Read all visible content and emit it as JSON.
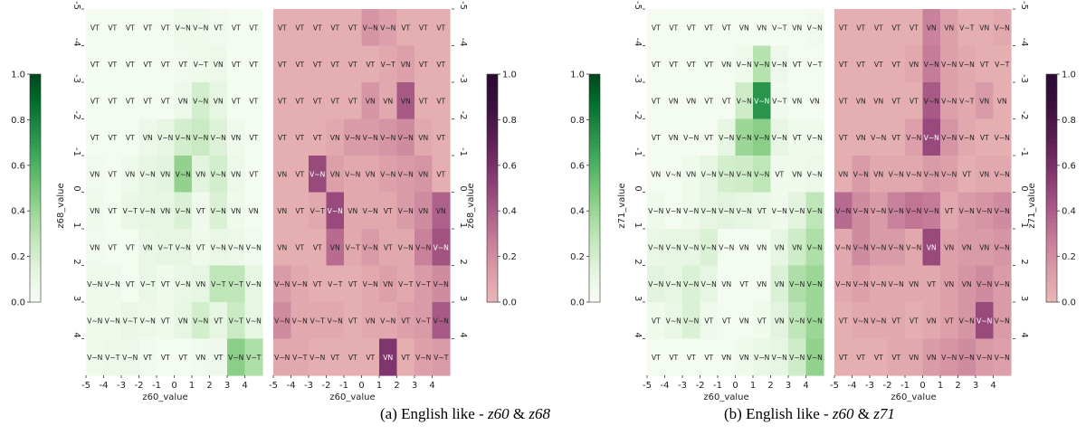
{
  "colors": {
    "green_scale": [
      "#f7fcf5",
      "#e5f5e0",
      "#c7e9c0",
      "#a1d99b",
      "#74c476",
      "#41ab5d",
      "#238b45",
      "#006d2c",
      "#00441b"
    ],
    "pink_scale": [
      "#e8b4b4",
      "#d99aa7",
      "#c27897",
      "#a35483",
      "#7e346c",
      "#5a1f55",
      "#3a1040",
      "#2a0b33"
    ],
    "text_dark": "#222222",
    "text_light": "#ffffff"
  },
  "colorbar_ticks": [
    "0.0",
    "0.2",
    "0.4",
    "0.6",
    "0.8",
    "1.0"
  ],
  "axis_ticks": [
    "-5",
    "-4",
    "-3",
    "-2",
    "-1",
    "0",
    "1",
    "2",
    "3",
    "4"
  ],
  "chart_data": [
    {
      "type": "heatmap",
      "caption": "(a) English like - z60 & z68",
      "caption_parts": {
        "prefix": "(a) English like - ",
        "var1": "z60",
        "amp": " & ",
        "var2": "z68"
      },
      "xlabel": "z60_value",
      "ylabel": "z68_value",
      "vmin": 0,
      "vmax": 1,
      "x_ticks": [
        "-5",
        "-4",
        "-3",
        "-2",
        "-1",
        "0",
        "1",
        "2",
        "3",
        "4"
      ],
      "y_ticks": [
        "-5",
        "-4",
        "-3",
        "-2",
        "-1",
        "0",
        "1",
        "2",
        "3",
        "4"
      ],
      "left_panel": {
        "colormap": "Greens",
        "labels": [
          [
            "VT",
            "VT",
            "VT",
            "VT",
            "VT",
            "V~N",
            "V~N",
            "VT",
            "VT",
            "VT"
          ],
          [
            "VT",
            "VT",
            "VT",
            "VT",
            "VT",
            "VT",
            "V~T",
            "VN",
            "VT",
            "VT"
          ],
          [
            "VT",
            "VT",
            "VT",
            "VT",
            "VT",
            "VN",
            "V~N",
            "VN",
            "VT",
            "VT"
          ],
          [
            "VT",
            "VT",
            "VT",
            "VN",
            "V~N",
            "V~N",
            "V~N",
            "V~N",
            "VN",
            "VT"
          ],
          [
            "VN",
            "VT",
            "VN",
            "V~N",
            "VN",
            "V~N",
            "VN",
            "V~N",
            "VN",
            "VT"
          ],
          [
            "VN",
            "VT",
            "V~T",
            "V~N",
            "VN",
            "V~N",
            "VT",
            "V~N",
            "VN",
            "VN"
          ],
          [
            "VN",
            "VT",
            "VT",
            "VN",
            "V~T",
            "V~N",
            "VT",
            "V~N",
            "V~N",
            "V~N"
          ],
          [
            "V~N",
            "V~N",
            "VT",
            "V~T",
            "VT",
            "V~N",
            "VN",
            "V~T",
            "V~T",
            "V~N"
          ],
          [
            "V~N",
            "V~N",
            "V~T",
            "V~N",
            "VT",
            "VN",
            "V~N",
            "VT",
            "V~T",
            "V~N"
          ],
          [
            "V~N",
            "V~T",
            "V~N",
            "VT",
            "VT",
            "VT",
            "VN",
            "VT",
            "V~N",
            "V~T"
          ]
        ],
        "values": [
          [
            0.02,
            0.02,
            0.02,
            0.02,
            0.02,
            0.05,
            0.05,
            0.03,
            0.02,
            0.02
          ],
          [
            0.02,
            0.02,
            0.02,
            0.02,
            0.02,
            0.03,
            0.05,
            0.06,
            0.02,
            0.02
          ],
          [
            0.02,
            0.02,
            0.02,
            0.02,
            0.02,
            0.06,
            0.18,
            0.1,
            0.02,
            0.02
          ],
          [
            0.02,
            0.02,
            0.02,
            0.06,
            0.1,
            0.18,
            0.22,
            0.14,
            0.05,
            0.02
          ],
          [
            0.03,
            0.02,
            0.05,
            0.1,
            0.12,
            0.38,
            0.12,
            0.18,
            0.06,
            0.02
          ],
          [
            0.05,
            0.02,
            0.08,
            0.1,
            0.1,
            0.15,
            0.05,
            0.15,
            0.05,
            0.02
          ],
          [
            0.03,
            0.02,
            0.02,
            0.08,
            0.1,
            0.1,
            0.05,
            0.08,
            0.06,
            0.04
          ],
          [
            0.05,
            0.05,
            0.02,
            0.08,
            0.05,
            0.08,
            0.1,
            0.25,
            0.25,
            0.1
          ],
          [
            0.05,
            0.05,
            0.08,
            0.06,
            0.05,
            0.1,
            0.18,
            0.1,
            0.22,
            0.1
          ],
          [
            0.05,
            0.06,
            0.06,
            0.04,
            0.02,
            0.02,
            0.04,
            0.06,
            0.4,
            0.3
          ]
        ]
      },
      "right_panel": {
        "colormap": "pink_r",
        "labels": [
          [
            "VT",
            "VT",
            "VT",
            "VT",
            "VT",
            "V~N",
            "V~N",
            "VT",
            "VT",
            "VT"
          ],
          [
            "VT",
            "VT",
            "VT",
            "VT",
            "VT",
            "VT",
            "V~T",
            "VN",
            "VT",
            "VT"
          ],
          [
            "VT",
            "VT",
            "VT",
            "VT",
            "VT",
            "VN",
            "VN",
            "VN",
            "VT",
            "VT"
          ],
          [
            "VT",
            "VT",
            "VT",
            "VN",
            "V~N",
            "V~N",
            "V~N",
            "V~N",
            "VN",
            "VT"
          ],
          [
            "VN",
            "VT",
            "V~N",
            "VN",
            "V~N",
            "VN",
            "V~N",
            "V~N",
            "VN",
            "VT"
          ],
          [
            "VN",
            "VT",
            "V~T",
            "V~N",
            "VN",
            "V~N",
            "VT",
            "V~N",
            "VN",
            "VN"
          ],
          [
            "VN",
            "VT",
            "VT",
            "VN",
            "V~T",
            "V~N",
            "VT",
            "V~N",
            "V~N",
            "V~N"
          ],
          [
            "V~N",
            "V~N",
            "VT",
            "V~T",
            "VT",
            "V~N",
            "VN",
            "V~T",
            "V~T",
            "V~N"
          ],
          [
            "V~N",
            "V~N",
            "V~T",
            "V~N",
            "VT",
            "VN",
            "V~N",
            "VT",
            "V~T",
            "V~N"
          ],
          [
            "V~N",
            "V~T",
            "V~N",
            "VT",
            "VT",
            "VT",
            "VN",
            "VT",
            "V~N",
            "V~T"
          ]
        ],
        "values": [
          [
            0.02,
            0.02,
            0.02,
            0.02,
            0.02,
            0.12,
            0.08,
            0.02,
            0.02,
            0.02
          ],
          [
            0.02,
            0.02,
            0.02,
            0.02,
            0.02,
            0.02,
            0.05,
            0.08,
            0.02,
            0.02
          ],
          [
            0.02,
            0.02,
            0.02,
            0.02,
            0.02,
            0.12,
            0.05,
            0.3,
            0.02,
            0.02
          ],
          [
            0.02,
            0.02,
            0.02,
            0.05,
            0.1,
            0.1,
            0.12,
            0.15,
            0.05,
            0.02
          ],
          [
            0.02,
            0.02,
            0.35,
            0.08,
            0.05,
            0.05,
            0.08,
            0.1,
            0.12,
            0.02
          ],
          [
            0.02,
            0.02,
            0.05,
            0.35,
            0.05,
            0.05,
            0.05,
            0.1,
            0.15,
            0.28
          ],
          [
            0.02,
            0.02,
            0.02,
            0.25,
            0.05,
            0.1,
            0.05,
            0.05,
            0.18,
            0.32
          ],
          [
            0.1,
            0.05,
            0.02,
            0.02,
            0.02,
            0.05,
            0.08,
            0.05,
            0.1,
            0.15
          ],
          [
            0.15,
            0.05,
            0.05,
            0.05,
            0.02,
            0.05,
            0.05,
            0.08,
            0.1,
            0.3
          ],
          [
            0.05,
            0.05,
            0.02,
            0.02,
            0.02,
            0.02,
            0.42,
            0.02,
            0.08,
            0.1
          ]
        ]
      }
    },
    {
      "type": "heatmap",
      "caption": "(b) English like - z60 & z71",
      "caption_parts": {
        "prefix": "(b) English like - ",
        "var1": "z60",
        "amp": " & ",
        "var2": "z71"
      },
      "xlabel": "z60_value",
      "ylabel": "z71_value",
      "vmin": 0,
      "vmax": 1,
      "x_ticks": [
        "-5",
        "-4",
        "-3",
        "-2",
        "-1",
        "0",
        "1",
        "2",
        "3",
        "4"
      ],
      "y_ticks": [
        "-5",
        "-4",
        "-3",
        "-2",
        "-1",
        "0",
        "1",
        "2",
        "3",
        "4"
      ],
      "left_panel": {
        "colormap": "Greens",
        "labels": [
          [
            "VT",
            "VT",
            "VT",
            "VT",
            "VT",
            "VN",
            "VN",
            "V~T",
            "VN",
            "V~N"
          ],
          [
            "VT",
            "VT",
            "VT",
            "VT",
            "VN",
            "V~N",
            "V~N",
            "V~N",
            "VT",
            "V~T"
          ],
          [
            "VT",
            "VN",
            "VN",
            "VT",
            "VT",
            "V~N",
            "V~N",
            "V~T",
            "VN",
            "VN"
          ],
          [
            "VT",
            "VN",
            "V~N",
            "VT",
            "V~N",
            "V~N",
            "V~N",
            "V~N",
            "VT",
            "V~N"
          ],
          [
            "VN",
            "V~N",
            "VN",
            "V~N",
            "V~N",
            "V~N",
            "V~N",
            "VT",
            "VN",
            "V~N"
          ],
          [
            "V~N",
            "V~N",
            "V~N",
            "V~N",
            "V~N",
            "V~N",
            "VT",
            "V~N",
            "V~N",
            "V~N"
          ],
          [
            "V~N",
            "V~N",
            "V~N",
            "V~N",
            "V~N",
            "VN",
            "VN",
            "VN",
            "VN",
            "V~N"
          ],
          [
            "V~N",
            "V~N",
            "V~N",
            "V~N",
            "VN",
            "VT",
            "VN",
            "VN",
            "V~N",
            "V~N"
          ],
          [
            "VT",
            "V~N",
            "V~N",
            "VT",
            "VT",
            "VN",
            "VT",
            "VN",
            "V~N",
            "V~N"
          ],
          [
            "VT",
            "VT",
            "VT",
            "VT",
            "VN",
            "VN",
            "V~N",
            "V~N",
            "V~N",
            "V~N"
          ]
        ],
        "values": [
          [
            0.02,
            0.02,
            0.02,
            0.02,
            0.02,
            0.02,
            0.02,
            0.02,
            0.02,
            0.03
          ],
          [
            0.02,
            0.02,
            0.02,
            0.02,
            0.02,
            0.05,
            0.28,
            0.06,
            0.02,
            0.02
          ],
          [
            0.02,
            0.02,
            0.02,
            0.02,
            0.02,
            0.2,
            0.65,
            0.05,
            0.02,
            0.02
          ],
          [
            0.02,
            0.02,
            0.02,
            0.02,
            0.1,
            0.35,
            0.4,
            0.1,
            0.05,
            0.05
          ],
          [
            0.02,
            0.02,
            0.05,
            0.1,
            0.18,
            0.2,
            0.25,
            0.05,
            0.05,
            0.06
          ],
          [
            0.05,
            0.02,
            0.05,
            0.1,
            0.12,
            0.1,
            0.08,
            0.05,
            0.12,
            0.25
          ],
          [
            0.08,
            0.1,
            0.1,
            0.15,
            0.02,
            0.02,
            0.02,
            0.1,
            0.2,
            0.3
          ],
          [
            0.12,
            0.1,
            0.15,
            0.1,
            0.02,
            0.02,
            0.02,
            0.15,
            0.3,
            0.35
          ],
          [
            0.05,
            0.08,
            0.15,
            0.05,
            0.02,
            0.02,
            0.05,
            0.12,
            0.25,
            0.35
          ],
          [
            0.02,
            0.02,
            0.02,
            0.02,
            0.02,
            0.05,
            0.08,
            0.1,
            0.2,
            0.38
          ]
        ]
      },
      "right_panel": {
        "colormap": "pink_r",
        "labels": [
          [
            "VT",
            "VT",
            "VT",
            "VT",
            "VT",
            "VN",
            "VN",
            "V~T",
            "VN",
            "V~N"
          ],
          [
            "VT",
            "VT",
            "VT",
            "VT",
            "VN",
            "V~N",
            "V~N",
            "V~N",
            "VT",
            "V~T"
          ],
          [
            "VT",
            "VN",
            "VN",
            "VT",
            "VT",
            "V~N",
            "V~N",
            "V~T",
            "VN",
            "VN"
          ],
          [
            "VT",
            "VN",
            "V~N",
            "VT",
            "V~N",
            "V~N",
            "V~N",
            "V~N",
            "VT",
            "V~N"
          ],
          [
            "VN",
            "V~N",
            "VN",
            "V~N",
            "V~N",
            "V~N",
            "V~N",
            "VT",
            "VN",
            "V~N"
          ],
          [
            "V~N",
            "V~N",
            "V~N",
            "V~N",
            "V~N",
            "V~N",
            "VT",
            "V~N",
            "V~N",
            "V~N"
          ],
          [
            "V~N",
            "V~N",
            "V~N",
            "V~N",
            "V~N",
            "VN",
            "VN",
            "VN",
            "VN",
            "V~N"
          ],
          [
            "V~N",
            "V~N",
            "V~N",
            "V~N",
            "VN",
            "VT",
            "VN",
            "VN",
            "V~N",
            "V~N"
          ],
          [
            "VT",
            "V~N",
            "V~N",
            "VT",
            "VT",
            "VN",
            "VT",
            "V~N",
            "V~N",
            "V~N"
          ],
          [
            "VT",
            "VT",
            "VT",
            "VT",
            "VN",
            "VN",
            "V~N",
            "V~N",
            "V~N",
            "V~N"
          ]
        ],
        "values": [
          [
            0.02,
            0.02,
            0.02,
            0.02,
            0.02,
            0.18,
            0.08,
            0.02,
            0.02,
            0.05
          ],
          [
            0.02,
            0.02,
            0.02,
            0.02,
            0.05,
            0.2,
            0.08,
            0.05,
            0.02,
            0.02
          ],
          [
            0.02,
            0.02,
            0.02,
            0.02,
            0.02,
            0.3,
            0.08,
            0.05,
            0.1,
            0.02
          ],
          [
            0.02,
            0.02,
            0.02,
            0.02,
            0.08,
            0.35,
            0.12,
            0.05,
            0.02,
            0.02
          ],
          [
            0.02,
            0.1,
            0.05,
            0.05,
            0.05,
            0.1,
            0.08,
            0.02,
            0.05,
            0.05
          ],
          [
            0.25,
            0.15,
            0.1,
            0.18,
            0.22,
            0.2,
            0.05,
            0.1,
            0.12,
            0.15
          ],
          [
            0.05,
            0.15,
            0.1,
            0.1,
            0.05,
            0.35,
            0.08,
            0.1,
            0.1,
            0.12
          ],
          [
            0.05,
            0.08,
            0.05,
            0.05,
            0.05,
            0.05,
            0.08,
            0.12,
            0.15,
            0.1
          ],
          [
            0.02,
            0.05,
            0.05,
            0.05,
            0.02,
            0.05,
            0.08,
            0.12,
            0.35,
            0.1
          ],
          [
            0.02,
            0.02,
            0.02,
            0.05,
            0.05,
            0.1,
            0.12,
            0.15,
            0.1,
            0.08
          ]
        ]
      }
    }
  ]
}
